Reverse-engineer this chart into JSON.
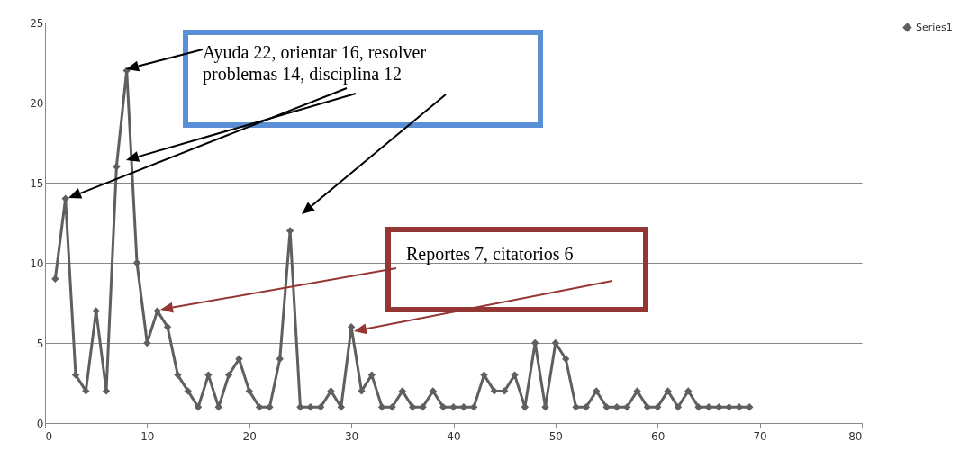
{
  "chart_data": {
    "type": "line",
    "x": [
      1,
      2,
      3,
      4,
      5,
      6,
      7,
      8,
      9,
      10,
      11,
      12,
      13,
      14,
      15,
      16,
      17,
      18,
      19,
      20,
      21,
      22,
      23,
      24,
      25,
      26,
      27,
      28,
      29,
      30,
      31,
      32,
      33,
      34,
      35,
      36,
      37,
      38,
      39,
      40,
      41,
      42,
      43,
      44,
      45,
      46,
      47,
      48,
      49,
      50,
      51,
      52,
      53,
      54,
      55,
      56,
      57,
      58,
      59,
      60,
      61,
      62,
      63,
      64,
      65,
      66,
      67,
      68,
      69
    ],
    "series": [
      {
        "name": "Series1",
        "color": "#5f5f5f",
        "values": [
          9,
          14,
          3,
          2,
          7,
          2,
          16,
          22,
          10,
          5,
          7,
          6,
          3,
          2,
          1,
          3,
          1,
          3,
          4,
          2,
          1,
          1,
          4,
          12,
          1,
          1,
          1,
          2,
          1,
          6,
          2,
          3,
          1,
          1,
          2,
          1,
          1,
          2,
          1,
          1,
          1,
          1,
          3,
          2,
          2,
          3,
          1,
          5,
          1,
          5,
          4,
          1,
          1,
          2,
          1,
          1,
          1,
          2,
          1,
          1,
          2,
          1,
          2,
          1,
          1,
          1,
          1,
          1,
          1
        ]
      }
    ],
    "xlim": [
      0,
      80
    ],
    "xticks": [
      0,
      10,
      20,
      30,
      40,
      50,
      60,
      70,
      80
    ],
    "ylim": [
      0,
      25
    ],
    "yticks": [
      0,
      5,
      10,
      15,
      20,
      25
    ],
    "grid": "y",
    "legend": "right",
    "marker": "diamond",
    "line_style": "solid",
    "annotations": [
      "Ayuda 22,  orientar 16, resolver problemas  14,  disciplina 12",
      "Reportes 7,  citatorios 6"
    ]
  }
}
